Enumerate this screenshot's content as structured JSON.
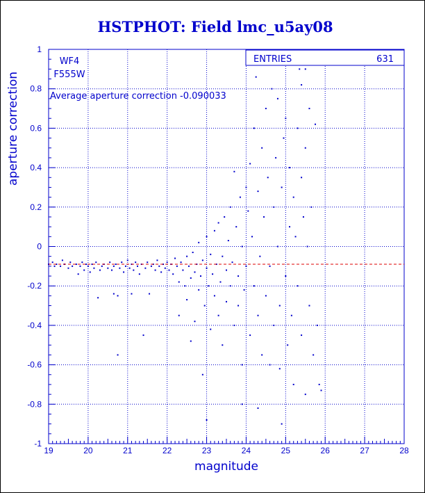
{
  "chart_data": {
    "type": "scatter",
    "title": "HSTPHOT: Field lmc_u5ay08",
    "xlabel": "magnitude",
    "ylabel": "aperture correction",
    "xlim": [
      19,
      28
    ],
    "ylim": [
      -1,
      1
    ],
    "x_ticks": [
      "19",
      "20",
      "21",
      "22",
      "23",
      "24",
      "25",
      "26",
      "27",
      "28"
    ],
    "y_ticks": [
      "-1",
      "-0.8",
      "-0.6",
      "-0.4",
      "-0.2",
      "0",
      "0.2",
      "0.4",
      "0.6",
      "0.8",
      "1"
    ],
    "grid": true,
    "point_color": "#0000cc",
    "reference_line": {
      "y": -0.090033,
      "color": "#dd0000",
      "style": "dashed"
    },
    "annotations": {
      "chip": "WF4",
      "filter": "F555W",
      "average": "Average aperture correction -0.090033"
    },
    "stats_box": {
      "label": "ENTRIES",
      "value": "631"
    },
    "points": [
      [
        19.0,
        -0.09
      ],
      [
        19.1,
        -0.08
      ],
      [
        19.15,
        -0.1
      ],
      [
        19.2,
        -0.09
      ],
      [
        19.3,
        -0.1
      ],
      [
        19.35,
        -0.07
      ],
      [
        19.4,
        -0.09
      ],
      [
        19.5,
        -0.11
      ],
      [
        19.55,
        -0.08
      ],
      [
        19.6,
        -0.1
      ],
      [
        19.7,
        -0.09
      ],
      [
        19.75,
        -0.14
      ],
      [
        19.8,
        -0.1
      ],
      [
        19.85,
        -0.08
      ],
      [
        19.9,
        -0.12
      ],
      [
        19.95,
        -0.09
      ],
      [
        20.0,
        -0.1
      ],
      [
        20.05,
        -0.13
      ],
      [
        20.1,
        -0.09
      ],
      [
        20.15,
        -0.11
      ],
      [
        20.2,
        -0.08
      ],
      [
        20.25,
        -0.26
      ],
      [
        20.3,
        -0.12
      ],
      [
        20.35,
        -0.1
      ],
      [
        20.4,
        -0.09
      ],
      [
        20.5,
        -0.11
      ],
      [
        20.55,
        -0.08
      ],
      [
        20.6,
        -0.12
      ],
      [
        20.65,
        -0.1
      ],
      [
        20.7,
        -0.09
      ],
      [
        20.75,
        -0.55
      ],
      [
        20.8,
        -0.11
      ],
      [
        20.85,
        -0.08
      ],
      [
        20.9,
        -0.13
      ],
      [
        20.95,
        -0.1
      ],
      [
        21.0,
        -0.07
      ],
      [
        21.05,
        -0.11
      ],
      [
        21.1,
        -0.09
      ],
      [
        21.15,
        -0.12
      ],
      [
        21.2,
        -0.08
      ],
      [
        21.25,
        -0.1
      ],
      [
        21.3,
        -0.14
      ],
      [
        21.35,
        -0.09
      ],
      [
        21.4,
        -0.45
      ],
      [
        21.45,
        -0.11
      ],
      [
        21.5,
        -0.08
      ],
      [
        21.55,
        -0.24
      ],
      [
        21.6,
        -0.1
      ],
      [
        21.65,
        -0.09
      ],
      [
        21.7,
        -0.12
      ],
      [
        21.75,
        -0.07
      ],
      [
        21.8,
        -0.1
      ],
      [
        21.85,
        -0.13
      ],
      [
        21.9,
        -0.09
      ],
      [
        21.95,
        -0.11
      ],
      [
        22.0,
        -0.08
      ],
      [
        20.65,
        -0.24
      ],
      [
        20.75,
        -0.25
      ],
      [
        21.1,
        -0.24
      ],
      [
        22.05,
        -0.12
      ],
      [
        22.1,
        -0.09
      ],
      [
        22.15,
        -0.14
      ],
      [
        22.2,
        -0.06
      ],
      [
        22.25,
        -0.1
      ],
      [
        22.3,
        -0.18
      ],
      [
        22.3,
        -0.35
      ],
      [
        22.35,
        -0.08
      ],
      [
        22.4,
        -0.12
      ],
      [
        22.45,
        -0.2
      ],
      [
        22.5,
        -0.05
      ],
      [
        22.5,
        -0.27
      ],
      [
        22.55,
        -0.1
      ],
      [
        22.6,
        -0.16
      ],
      [
        22.6,
        -0.48
      ],
      [
        22.65,
        -0.03
      ],
      [
        22.7,
        -0.13
      ],
      [
        22.7,
        -0.38
      ],
      [
        22.75,
        -0.09
      ],
      [
        22.8,
        -0.22
      ],
      [
        22.8,
        0.02
      ],
      [
        22.85,
        -0.15
      ],
      [
        22.9,
        -0.07
      ],
      [
        22.9,
        -0.65
      ],
      [
        22.95,
        -0.3
      ],
      [
        23.0,
        -0.11
      ],
      [
        23.0,
        0.05
      ],
      [
        23.0,
        -0.88
      ],
      [
        23.05,
        -0.2
      ],
      [
        23.1,
        -0.04
      ],
      [
        23.1,
        -0.42
      ],
      [
        23.15,
        -0.14
      ],
      [
        23.2,
        0.08
      ],
      [
        23.2,
        -0.25
      ],
      [
        23.25,
        -0.09
      ],
      [
        23.3,
        -0.35
      ],
      [
        23.3,
        0.12
      ],
      [
        23.35,
        -0.18
      ],
      [
        23.4,
        -0.05
      ],
      [
        23.4,
        -0.5
      ],
      [
        23.45,
        0.15
      ],
      [
        23.5,
        -0.12
      ],
      [
        23.5,
        -0.28
      ],
      [
        23.55,
        0.03
      ],
      [
        23.6,
        -0.2
      ],
      [
        23.6,
        0.2
      ],
      [
        23.65,
        -0.08
      ],
      [
        23.7,
        -0.4
      ],
      [
        23.7,
        0.38
      ],
      [
        23.75,
        0.1
      ],
      [
        23.8,
        -0.15
      ],
      [
        23.8,
        -0.3
      ],
      [
        23.85,
        0.25
      ],
      [
        23.9,
        0.0
      ],
      [
        23.9,
        -0.6
      ],
      [
        23.95,
        -0.22
      ],
      [
        24.0,
        0.3
      ],
      [
        24.0,
        -0.1
      ],
      [
        24.05,
        0.18
      ],
      [
        24.1,
        -0.45
      ],
      [
        24.1,
        0.42
      ],
      [
        24.15,
        0.05
      ],
      [
        24.2,
        -0.2
      ],
      [
        24.2,
        0.6
      ],
      [
        24.25,
        0.86
      ],
      [
        24.3,
        -0.35
      ],
      [
        24.3,
        0.28
      ],
      [
        24.35,
        -0.05
      ],
      [
        24.4,
        0.5
      ],
      [
        24.4,
        -0.55
      ],
      [
        24.45,
        0.15
      ],
      [
        24.5,
        -0.25
      ],
      [
        24.5,
        0.7
      ],
      [
        24.55,
        0.35
      ],
      [
        24.6,
        -0.1
      ],
      [
        24.6,
        -0.6
      ],
      [
        24.65,
        0.8
      ],
      [
        24.7,
        0.2
      ],
      [
        24.7,
        -0.4
      ],
      [
        24.75,
        0.45
      ],
      [
        24.8,
        0.0
      ],
      [
        24.8,
        0.75
      ],
      [
        24.85,
        -0.3
      ],
      [
        24.9,
        0.3
      ],
      [
        24.9,
        -0.9
      ],
      [
        24.95,
        0.55
      ],
      [
        25.0,
        -0.15
      ],
      [
        25.0,
        0.65
      ],
      [
        25.05,
        -0.5
      ],
      [
        25.1,
        0.1
      ],
      [
        25.1,
        0.4
      ],
      [
        25.15,
        -0.35
      ],
      [
        25.2,
        0.25
      ],
      [
        25.2,
        -0.7
      ],
      [
        25.25,
        0.05
      ],
      [
        25.3,
        0.6
      ],
      [
        25.3,
        -0.2
      ],
      [
        25.35,
        0.9
      ],
      [
        25.4,
        -0.45
      ],
      [
        25.4,
        0.35
      ],
      [
        25.45,
        0.15
      ],
      [
        25.5,
        -0.75
      ],
      [
        25.5,
        0.5
      ],
      [
        25.55,
        0.0
      ],
      [
        25.6,
        -0.3
      ],
      [
        25.6,
        0.7
      ],
      [
        25.65,
        0.2
      ],
      [
        25.7,
        -0.55
      ],
      [
        25.75,
        0.62
      ],
      [
        25.8,
        -0.4
      ],
      [
        25.85,
        -0.7
      ],
      [
        25.9,
        -0.73
      ],
      [
        25.5,
        0.9
      ],
      [
        25.4,
        0.82
      ],
      [
        24.3,
        -0.82
      ],
      [
        23.9,
        -0.8
      ],
      [
        24.85,
        -0.62
      ]
    ]
  }
}
